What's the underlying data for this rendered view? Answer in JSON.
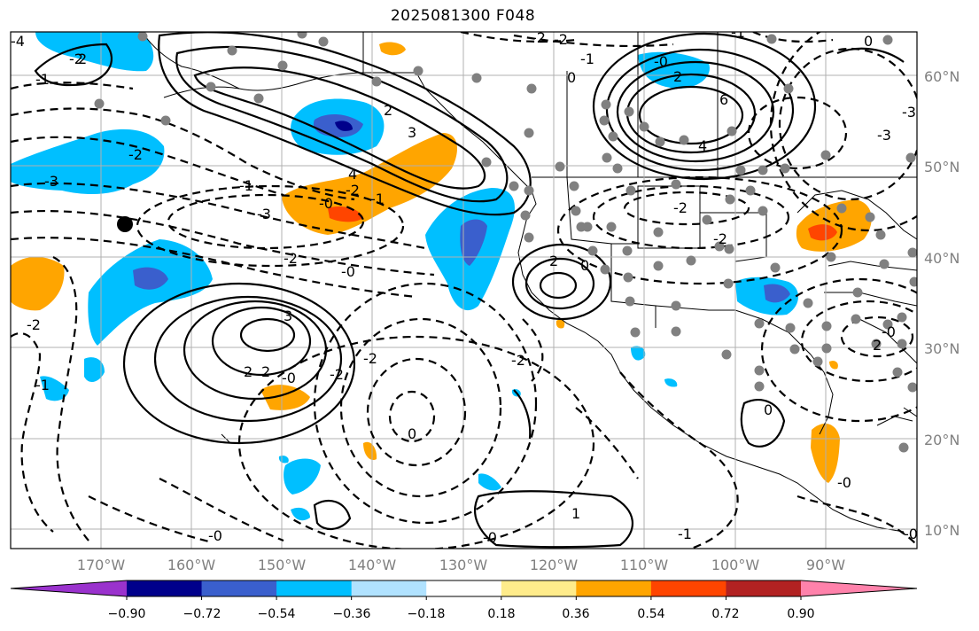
{
  "title": "2025081300 F048",
  "map": {
    "lat_labels": [
      "60°N",
      "50°N",
      "40°N",
      "30°N",
      "20°N",
      "10°N"
    ],
    "lon_labels": [
      "170°W",
      "160°W",
      "150°W",
      "140°W",
      "130°W",
      "120°W",
      "110°W",
      "100°W",
      "90°W"
    ],
    "grid": true,
    "station_marker_color": "#808080"
  },
  "colorbar": {
    "colors": [
      "#9a32cd",
      "#00008b",
      "#3a5fcd",
      "#00bfff",
      "#b0e2ff",
      "#ffffff",
      "#ffec8b",
      "#ffa500",
      "#ff4500",
      "#b22222",
      "#ff82ab"
    ],
    "tick_labels": [
      "−0.90",
      "−0.72",
      "−0.54",
      "−0.36",
      "−0.18",
      "0.18",
      "0.36",
      "0.54",
      "0.72",
      "0.90"
    ],
    "extend": "both"
  },
  "contour_labels": {
    "c1": "-1",
    "c2": "-2",
    "c3": "2",
    "c4": "-0",
    "c5": "-1",
    "c6": "2",
    "c7": "3",
    "c8": "4",
    "c9": "-4",
    "c10": "-3",
    "c11": "-2",
    "c12": "-0",
    "c13": "-1",
    "c14": "-2",
    "c15": "-3",
    "c16": "-2",
    "c17": "-0",
    "c18": "3",
    "c19": "2",
    "c20": "2",
    "c21": "-0",
    "c22": "-2",
    "c23": "0",
    "c24": "-2",
    "c25": "2",
    "c26": "0",
    "c27": "6",
    "c28": "4",
    "c29": "2",
    "c30": "-3",
    "c31": "-2",
    "c32": "-2",
    "c33": "-2",
    "c34": "-0",
    "c35": "0",
    "c36": "0",
    "c37": "-2",
    "c38": "-3",
    "c39": "-1",
    "c40": "-1",
    "c41": "-0",
    "c42": "1",
    "c43": "-0",
    "c44": "0",
    "c45": "-1",
    "c46": "-0",
    "c47": "2",
    "c48": "-3",
    "c49": "3",
    "c50": "-2",
    "c51": "-1",
    "c52": "-1",
    "c53": "-2",
    "c54": "-0"
  }
}
